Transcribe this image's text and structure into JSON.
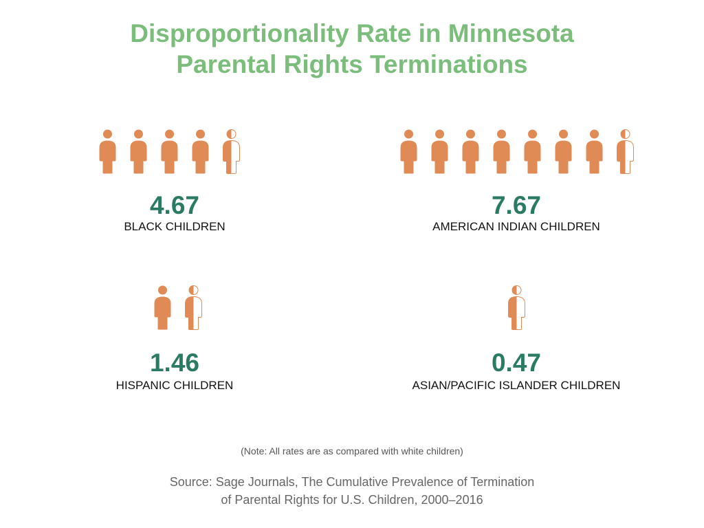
{
  "title_line1": "Disproportionality Rate in Minnesota",
  "title_line2": "Parental Rights Terminations",
  "chart_data": {
    "type": "pictogram",
    "title": "Disproportionality Rate in Minnesota Parental Rights Terminations",
    "categories": [
      "BLACK CHILDREN",
      "AMERICAN INDIAN CHILDREN",
      "HISPANIC CHILDREN",
      "ASIAN/PACIFIC ISLANDER CHILDREN"
    ],
    "values": [
      4.67,
      7.67,
      1.46,
      0.47
    ],
    "labels": [
      "4.67",
      "7.67",
      "1.46",
      "0.47"
    ],
    "icon": "person-icon",
    "icon_color": "#E08A55",
    "value_color": "#2A7B63"
  },
  "note": "(Note: All rates are as compared with white children)",
  "source_line1": "Source: Sage Journals, The Cumulative Prevalence of Termination",
  "source_line2": "of Parental Rights for U.S. Children, 2000–2016"
}
